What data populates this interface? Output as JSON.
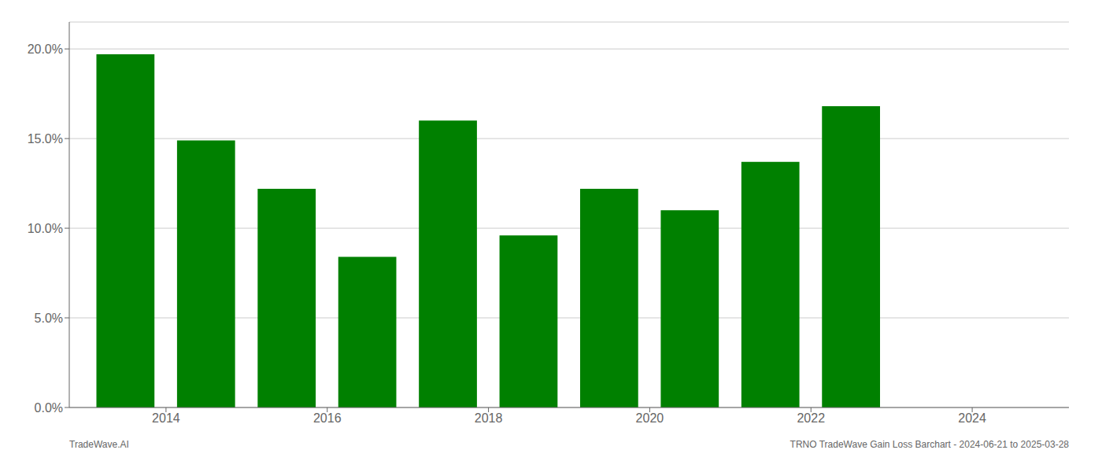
{
  "chart_data": {
    "type": "bar",
    "x": [
      2013,
      2014,
      2015,
      2016,
      2017,
      2018,
      2019,
      2020,
      2021,
      2022
    ],
    "values": [
      0.197,
      0.149,
      0.122,
      0.084,
      0.16,
      0.096,
      0.122,
      0.11,
      0.137,
      0.168
    ],
    "color": "#008000",
    "xlim": [
      2012.3,
      2024.7
    ],
    "xticks": [
      {
        "value": 2013.5,
        "label": "2014"
      },
      {
        "value": 2015.5,
        "label": "2016"
      },
      {
        "value": 2017.5,
        "label": "2018"
      },
      {
        "value": 2019.5,
        "label": "2020"
      },
      {
        "value": 2021.5,
        "label": "2022"
      },
      {
        "value": 2023.5,
        "label": "2024"
      }
    ],
    "ylim": [
      0.0,
      0.215
    ],
    "yticks": [
      {
        "value": 0.0,
        "label": "0.0%"
      },
      {
        "value": 0.05,
        "label": "5.0%"
      },
      {
        "value": 0.1,
        "label": "10.0%"
      },
      {
        "value": 0.15,
        "label": "15.0%"
      },
      {
        "value": 0.2,
        "label": "20.0%"
      }
    ],
    "grid": true,
    "annotations": [
      "TradeWave.AI",
      "TRNO TradeWave Gain Loss Barchart - 2024-06-21 to 2025-03-28"
    ]
  }
}
